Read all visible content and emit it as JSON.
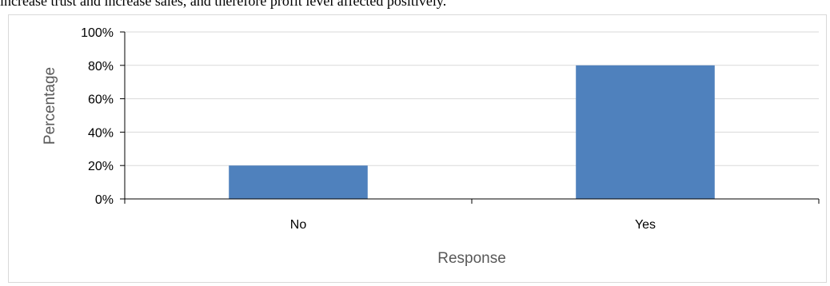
{
  "document": {
    "intro_text": "increase trust and increase sales, and therefore profit level affected positively."
  },
  "chart_data": {
    "type": "bar",
    "categories": [
      "No",
      "Yes"
    ],
    "values": [
      20,
      80
    ],
    "xlabel": "Response",
    "ylabel": "Percentage",
    "ylim": [
      0,
      100
    ],
    "yticks": [
      "0%",
      "20%",
      "40%",
      "60%",
      "80%",
      "100%"
    ],
    "grid": true,
    "bar_color": "#4f81bd",
    "grid_color": "#d9d9d9"
  }
}
